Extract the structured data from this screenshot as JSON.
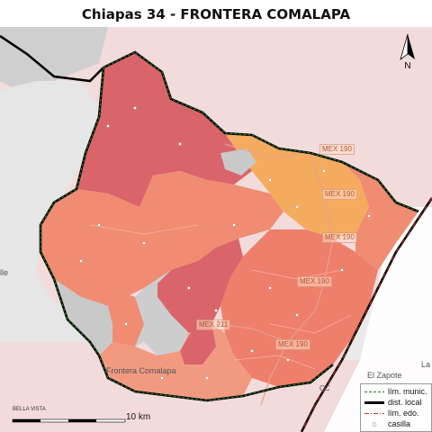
{
  "title": "Chiapas 34 - FRONTERA COMALAPA",
  "north_label": "N",
  "road_labels": [
    "MEX 190",
    "MEX 190",
    "MEX 190",
    "MEX 190",
    "MEX 211",
    "MEX 190",
    "MEX 211",
    "MEX 211",
    "MEX 190"
  ],
  "place_labels": {
    "frontera_comalapa": "Frontera Comalapa",
    "el_zapote": "El Zapote",
    "bella_vista": "BELLA VISTA",
    "occ": "CC",
    "la": "La",
    "lle": "lle"
  },
  "scale": {
    "label": "10 km"
  },
  "legend": {
    "items": [
      {
        "label": "lím. munic.",
        "symbol": "green-dashed-line"
      },
      {
        "label": "dist. local",
        "symbol": "black-thick-line"
      },
      {
        "label": "lím. edo.",
        "symbol": "red-dashdot-line"
      },
      {
        "label": "casilla",
        "symbol": "white-circle"
      }
    ]
  },
  "colors": {
    "dark_red": "#d9646a",
    "salmon": "#ef8c72",
    "light_salmon": "#f19a80",
    "orange": "#f5ab5e",
    "grey_area": "#c9c9c9",
    "background_pink": "#f5d6d6",
    "district_border": "#000000",
    "municipal_border": "#2e8b2e"
  }
}
